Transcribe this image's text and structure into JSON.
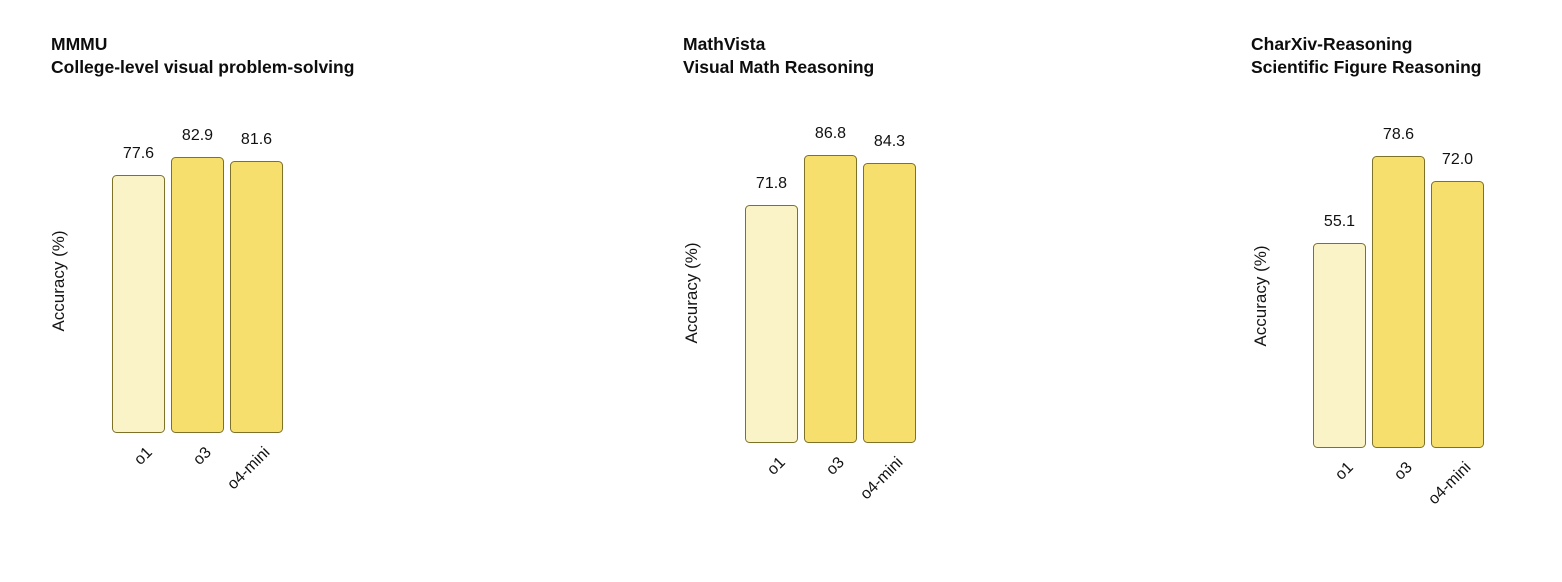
{
  "page": {
    "background": "#ffffff"
  },
  "palette": {
    "bar_fill_light": "#FBF3C8",
    "bar_fill_main": "#F7DF6E",
    "bar_border": "#7E7128",
    "text": "#111111"
  },
  "chart_data": [
    {
      "type": "bar",
      "title": "MMMU",
      "subtitle": "College-level visual problem-solving",
      "ylabel": "Accuracy (%)",
      "categories": [
        "o1",
        "o3",
        "o4-mini"
      ],
      "values": [
        77.6,
        82.9,
        81.6
      ],
      "value_labels": [
        "77.6",
        "82.9",
        "81.6"
      ],
      "ylim": [
        0,
        100
      ],
      "grid": false,
      "legend": "none",
      "bar_colors": [
        "#FBF3C8",
        "#F7DF6E",
        "#F7DF6E"
      ],
      "bar_border": "#7E7128"
    },
    {
      "type": "bar",
      "title": "MathVista",
      "subtitle": "Visual Math Reasoning",
      "ylabel": "Accuracy (%)",
      "categories": [
        "o1",
        "o3",
        "o4-mini"
      ],
      "values": [
        71.8,
        86.8,
        84.3
      ],
      "value_labels": [
        "71.8",
        "86.8",
        "84.3"
      ],
      "ylim": [
        0,
        100
      ],
      "grid": false,
      "legend": "none",
      "bar_colors": [
        "#FBF3C8",
        "#F7DF6E",
        "#F7DF6E"
      ],
      "bar_border": "#7E7128"
    },
    {
      "type": "bar",
      "title": "CharXiv-Reasoning",
      "subtitle": "Scientific Figure Reasoning",
      "ylabel": "Accuracy (%)",
      "categories": [
        "o1",
        "o3",
        "o4-mini"
      ],
      "values": [
        55.1,
        78.6,
        72.0
      ],
      "value_labels": [
        "55.1",
        "78.6",
        "72.0"
      ],
      "ylim": [
        0,
        90
      ],
      "grid": false,
      "legend": "none",
      "bar_colors": [
        "#FBF3C8",
        "#F7DF6E",
        "#F7DF6E"
      ],
      "bar_border": "#7E7128"
    }
  ]
}
